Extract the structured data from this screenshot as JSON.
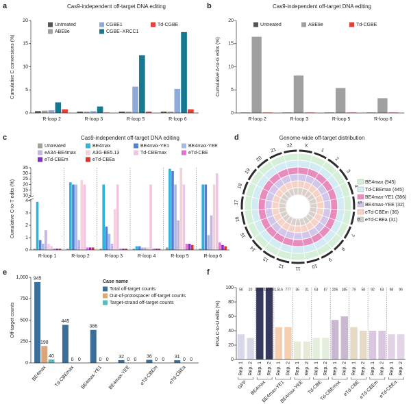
{
  "chart_data": [
    {
      "panel": "a",
      "type": "bar",
      "title": "Cas9-independent off-target DNA editing",
      "ylabel": "Cumulative C conversions (%)",
      "categories": [
        "R-loop 2",
        "R-loop 3",
        "R-loop 5",
        "R-loop 6"
      ],
      "series": [
        {
          "name": "Untreated",
          "color": "#555555",
          "values": [
            0.4,
            0.3,
            0.3,
            0.3
          ]
        },
        {
          "name": "ABE8e",
          "color": "#a0a0a0",
          "values": [
            0.5,
            0.3,
            0.3,
            0.3
          ]
        },
        {
          "name": "CGBE1",
          "color": "#8eaad8",
          "values": [
            0.6,
            0.4,
            5.7,
            5.2
          ]
        },
        {
          "name": "CGBE–XRCC1",
          "color": "#17798f",
          "values": [
            2.3,
            1.4,
            12.5,
            17.5
          ]
        },
        {
          "name": "Td-CGBE",
          "color": "#e2403a",
          "values": [
            0.8,
            0.1,
            0.3,
            0.8
          ]
        }
      ],
      "ylim": [
        0,
        20
      ],
      "yticks": [
        0,
        5,
        10,
        15,
        20
      ]
    },
    {
      "panel": "b",
      "type": "bar",
      "title": "Cas9-independent off-target DNA editing",
      "ylabel": "Cumulative A-to-G edits (%)",
      "categories": [
        "R-loop 2",
        "R-loop 3",
        "R-loop 5",
        "R-loop 6"
      ],
      "series": [
        {
          "name": "Untreated",
          "color": "#555555",
          "values": [
            0.1,
            0.1,
            0.1,
            0.1
          ]
        },
        {
          "name": "ABE8e",
          "color": "#a0a0a0",
          "values": [
            16.5,
            8.1,
            5.4,
            3.2
          ]
        },
        {
          "name": "Td-CGBE",
          "color": "#e2403a",
          "values": [
            0.1,
            0.1,
            0.1,
            0.1
          ]
        }
      ],
      "ylim": [
        0,
        20
      ],
      "yticks": [
        0,
        5,
        10,
        15,
        20
      ]
    },
    {
      "panel": "c",
      "type": "bar",
      "title": "Cas9-independent off-target DNA editing",
      "ylabel": "Cumulative C-to-T edits (%)",
      "categories": [
        "R-loop 1",
        "R-loop 2",
        "R-loop 3",
        "R-loop 4",
        "R-loop 5",
        "R-loop 6"
      ],
      "series": [
        {
          "name": "Untreated",
          "color": "#a0a0a0",
          "values": [
            0.1,
            0.1,
            0.1,
            0.1,
            0.2,
            0.1
          ]
        },
        {
          "name": "BE4max",
          "color": "#2bb5d8",
          "values": [
            3.9,
            22,
            20,
            0.3,
            34,
            20
          ]
        },
        {
          "name": "BE4max-YE1",
          "color": "#4f7fd6",
          "values": [
            0.8,
            20,
            1.9,
            0.3,
            32,
            20
          ]
        },
        {
          "name": "BE4max-YEE",
          "color": "#a7b8e8",
          "values": [
            0.5,
            20,
            1.3,
            0.2,
            20,
            1.2
          ]
        },
        {
          "name": "eA3A-BE4max",
          "color": "#c5b3e6",
          "values": [
            1.6,
            0.8,
            0.5,
            0.2,
            2.4,
            2.8
          ]
        },
        {
          "name": "A3G-BE5.13",
          "color": "#f3d2d8",
          "values": [
            0.5,
            24,
            3.3,
            0.2,
            35,
            20
          ]
        },
        {
          "name": "Td-CBEmax",
          "color": "#f2c4e6",
          "values": [
            0.3,
            20,
            20,
            20,
            20,
            30
          ]
        },
        {
          "name": "eTd-CBE",
          "color": "#e86fd6",
          "values": [
            0.1,
            0.2,
            0.1,
            0.1,
            0.5,
            0.6
          ]
        },
        {
          "name": "eTd-CBEm",
          "color": "#8a2bc8",
          "values": [
            0.1,
            0.2,
            0.1,
            0.1,
            0.5,
            0.4
          ]
        },
        {
          "name": "eTd-CBEa",
          "color": "#e0302a",
          "values": [
            0.1,
            0.2,
            0.1,
            0.1,
            0.4,
            0.3
          ]
        }
      ],
      "ylim": [
        0,
        35
      ],
      "axis_break": [
        4,
        10
      ],
      "yticks": [
        0,
        1,
        2,
        3,
        4,
        10,
        15,
        20,
        25,
        30,
        35
      ]
    },
    {
      "panel": "d",
      "type": "circos",
      "title": "Genome-wide off-target distribution",
      "chromosomes": [
        "X",
        "1",
        "2",
        "3",
        "4",
        "5",
        "6",
        "7",
        "8",
        "9",
        "10",
        "11",
        "12",
        "13",
        "14",
        "15",
        "16",
        "17",
        "18",
        "19",
        "20",
        "21",
        "22"
      ],
      "tracks": [
        {
          "name": "BE4max (945)",
          "color": "#d5efd8"
        },
        {
          "name": "Td-CBEmax (445)",
          "color": "#d3ebf5"
        },
        {
          "name": "BE4max-YE1 (386)",
          "color": "#e88bbd"
        },
        {
          "name": "BE4max-YEE (32)",
          "color": "#d2c6ea"
        },
        {
          "name": "eTd-CBEm (36)",
          "color": "#f6d3c6"
        },
        {
          "name": "eTd-CBEa (31)",
          "color": "#d9d0cc"
        }
      ]
    },
    {
      "panel": "e",
      "type": "bar",
      "ylabel": "Off-target counts",
      "legend_title": "Case name",
      "categories": [
        "BE4max",
        "Td-CBEmax",
        "BE4max-YE1",
        "BE4max-YEE",
        "eTd-CBEm",
        "eTd-CBEa"
      ],
      "series": [
        {
          "name": "Total off-target counts",
          "color": "#3b6f9a",
          "values": [
            945,
            445,
            386,
            32,
            36,
            31
          ]
        },
        {
          "name": "Out-of-protospacer off-target counts",
          "color": "#d9a77a",
          "values": [
            198,
            0,
            0,
            0,
            0,
            0
          ]
        },
        {
          "name": "Target-strand off-target counts",
          "color": "#5bbcb8",
          "values": [
            40,
            0,
            0,
            0,
            0,
            0
          ]
        }
      ],
      "ylim": [
        0,
        1000
      ],
      "yticks": [
        0,
        250,
        500,
        750,
        {
          "value": 1000,
          "label": "1,000"
        }
      ]
    },
    {
      "panel": "f",
      "type": "strip",
      "ylabel": "RNA C-to-U edits (%)",
      "groups": [
        "GFP",
        "BE4max",
        "BE4max-YE1",
        "BE4max-YEE",
        "Td-CBE",
        "Td-CBEmax",
        "eTd-CBE",
        "eTd-CBEm",
        "eTd-CBEa"
      ],
      "group_colors": [
        "#9aa0c8",
        "#2b2d55",
        "#e8883a",
        "#c9c79a",
        "#b8d8a8",
        "#7a4a8a",
        "#c0a070",
        "#a070b0",
        "#b890c0"
      ],
      "replicates": [
        "Rep. 1",
        "Rep. 2",
        "Rep. 1",
        "Rep. 2",
        "Rep. 1",
        "Rep. 2",
        "Rep. 1",
        "Rep. 2",
        "Rep. 1",
        "Rep. 2",
        "Rep. 1",
        "Rep. 2",
        "Rep. 1",
        "Rep. 2",
        "Rep. 1",
        "Rep. 2",
        "Rep. 1",
        "Rep. 2"
      ],
      "counts": [
        "56",
        "20",
        "15,007",
        "15,486",
        "1,516",
        "777",
        "36",
        "31",
        "63",
        "87",
        "206",
        "185",
        "79",
        "58",
        "92",
        "63",
        "98",
        "96"
      ],
      "max_values": [
        35,
        30,
        100,
        100,
        45,
        45,
        25,
        25,
        30,
        30,
        55,
        60,
        45,
        40,
        40,
        40,
        35,
        35
      ],
      "ylim": [
        0,
        100
      ],
      "yticks": [
        0,
        20,
        40,
        60,
        80,
        100
      ]
    }
  ]
}
